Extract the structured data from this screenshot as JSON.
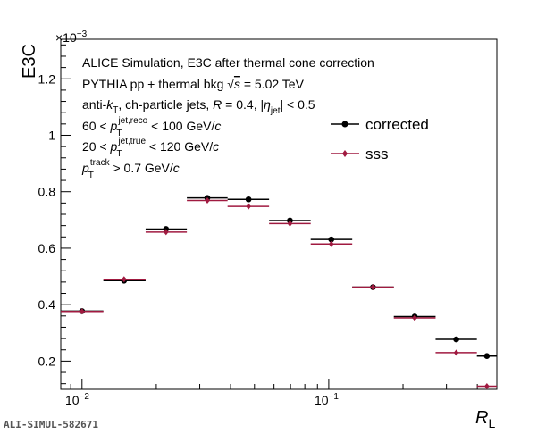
{
  "chart_data": {
    "type": "scatter",
    "xlabel": "R",
    "xlabel_sub": "L",
    "ylabel": "E3C",
    "y_multiplier": "×10",
    "y_multiplier_exp": "−3",
    "xscale": "log",
    "xlim": [
      0.0082,
      0.48
    ],
    "ylim": [
      0.1,
      1.34
    ],
    "y_scale_factor": 0.001,
    "yticks": [
      0.2,
      0.4,
      0.6,
      0.8,
      1,
      1.2
    ],
    "ytick_labels": [
      "0.2",
      "0.4",
      "0.6",
      "0.8",
      "1",
      "1.2"
    ],
    "xtick_major": [
      0.01,
      0.1
    ],
    "xtick_labels": [
      {
        "base": "10",
        "exp": "−2"
      },
      {
        "base": "10",
        "exp": "−1"
      }
    ],
    "bin_edges": [
      0.0082,
      0.0122,
      0.0181,
      0.0266,
      0.0389,
      0.0573,
      0.0845,
      0.1245,
      0.1835,
      0.271,
      0.3985,
      0.48
    ],
    "legend_position": "top-right",
    "series": [
      {
        "name": "corrected",
        "color": "#000000",
        "marker": "circle",
        "x": [
          0.01,
          0.0148,
          0.0219,
          0.0322,
          0.0473,
          0.0696,
          0.1024,
          0.1511,
          0.223,
          0.3287,
          0.4374
        ],
        "y": [
          0.377,
          0.485,
          0.668,
          0.778,
          0.773,
          0.698,
          0.631,
          0.462,
          0.358,
          0.277,
          0.218
        ]
      },
      {
        "name": "sss",
        "color": "#a01a40",
        "marker": "diamond",
        "x": [
          0.01,
          0.0148,
          0.0219,
          0.0322,
          0.0473,
          0.0696,
          0.1024,
          0.1511,
          0.223,
          0.3287,
          0.4374
        ],
        "y": [
          0.376,
          0.49,
          0.657,
          0.769,
          0.748,
          0.687,
          0.615,
          0.462,
          0.353,
          0.23,
          0.111
        ]
      }
    ],
    "annotations": {
      "line1": "ALICE Simulation, E3C after thermal cone correction",
      "line2a": "PYTHIA pp + thermal bkg ",
      "line2_sqrt": "√",
      "line2_s": "s",
      "line2b": " = 5.02 TeV",
      "line3a": "anti-",
      "line3_k": "k",
      "line3_ksub": "T",
      "line3b": ", ch-particle jets, ",
      "line3_R": "R",
      "line3c": " = 0.4, |",
      "line3_eta": "η",
      "line3_etasub": "jet",
      "line3d": "| < 0.5",
      "line4a": "60 < ",
      "line4_p": "p",
      "line4_sub": "T",
      "line4_sup": "jet,reco",
      "line4b": " < 100 GeV/",
      "line4_c": "c",
      "line5a": "20 < ",
      "line5_p": "p",
      "line5_sub": "T",
      "line5_sup": "jet,true",
      "line5b": " < 120 GeV/",
      "line5_c": "c",
      "line6_p": "p",
      "line6_sub": "T",
      "line6_sup": "track",
      "line6b": " > 0.7 GeV/",
      "line6_c": "c"
    }
  },
  "footer_label": "ALI-SIMUL-582671"
}
